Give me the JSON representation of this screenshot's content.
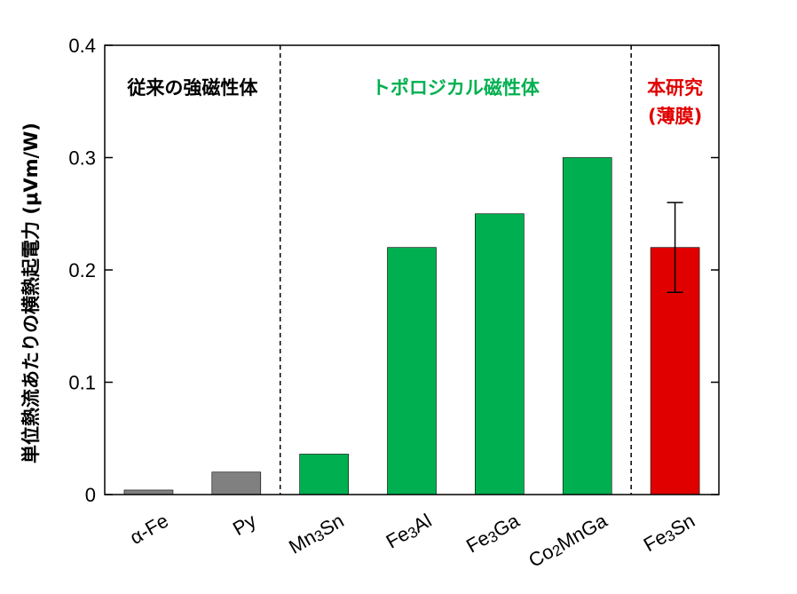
{
  "chart_data": {
    "type": "bar",
    "title": "",
    "xlabel": "",
    "ylabel": "単位熱流あたりの横熱起電力 (μVm/W)",
    "ylim": [
      0,
      0.4
    ],
    "yticks": [
      0,
      0.1,
      0.2,
      0.3,
      0.4
    ],
    "ytick_labels": [
      "0",
      "0.1",
      "0.2",
      "0.3",
      "0.4"
    ],
    "grid": false,
    "categories": [
      {
        "label": "α-Fe",
        "parts": [
          {
            "t": "α-Fe"
          }
        ]
      },
      {
        "label": "Py",
        "parts": [
          {
            "t": "Py"
          }
        ]
      },
      {
        "label": "Mn3Sn",
        "parts": [
          {
            "t": "Mn"
          },
          {
            "t": "3",
            "sub": true
          },
          {
            "t": "Sn"
          }
        ]
      },
      {
        "label": "Fe3Al",
        "parts": [
          {
            "t": "Fe"
          },
          {
            "t": "3",
            "sub": true
          },
          {
            "t": "Al"
          }
        ]
      },
      {
        "label": "Fe3Ga",
        "parts": [
          {
            "t": "Fe"
          },
          {
            "t": "3",
            "sub": true
          },
          {
            "t": "Ga"
          }
        ]
      },
      {
        "label": "Co2MnGa",
        "parts": [
          {
            "t": "Co"
          },
          {
            "t": "2",
            "sub": true
          },
          {
            "t": "MnGa"
          }
        ]
      },
      {
        "label": "Fe3Sn",
        "parts": [
          {
            "t": "Fe"
          },
          {
            "t": "3",
            "sub": true
          },
          {
            "t": "Sn"
          }
        ]
      }
    ],
    "values": [
      0.004,
      0.02,
      0.036,
      0.22,
      0.25,
      0.3,
      0.22
    ],
    "bar_colors": [
      "#808080",
      "#808080",
      "#00b050",
      "#00b050",
      "#00b050",
      "#00b050",
      "#e00000"
    ],
    "error_bars": [
      null,
      null,
      null,
      null,
      null,
      null,
      [
        0.18,
        0.26
      ]
    ],
    "groups": [
      {
        "lines": [
          "従来の強磁性体"
        ],
        "color": "#000000",
        "start": 0,
        "end": 1
      },
      {
        "lines": [
          "トポロジカル磁性体"
        ],
        "color": "#00b050",
        "start": 2,
        "end": 5
      },
      {
        "lines": [
          "本研究",
          "(薄膜)"
        ],
        "color": "#e00000",
        "start": 6,
        "end": 6
      }
    ],
    "dividers_after": [
      1,
      5
    ]
  }
}
